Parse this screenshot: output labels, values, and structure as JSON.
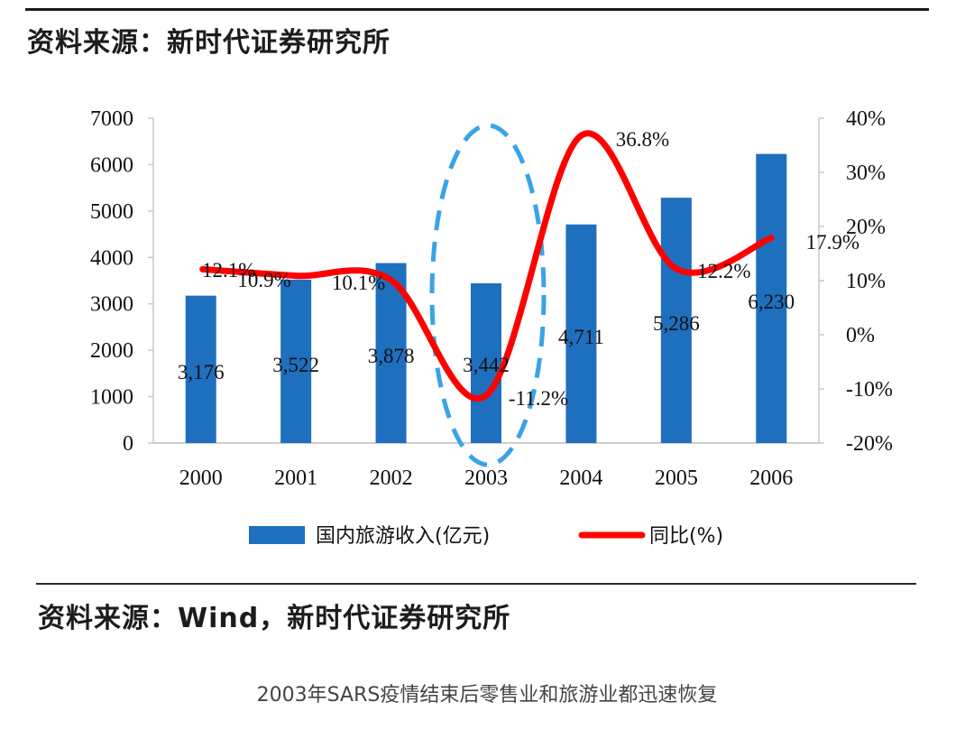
{
  "header": {
    "source_label": "资料来源：新时代证券研究所"
  },
  "footer": {
    "source_label": "资料来源：Wind，新时代证券研究所",
    "caption": "2003年SARS疫情结束后零售业和旅游业都迅速恢复"
  },
  "colors": {
    "bar": "#1f6fbf",
    "line": "#ff0000",
    "highlight": "#3aa3e8"
  },
  "chart_data": {
    "type": "bar",
    "categories": [
      "2000",
      "2001",
      "2002",
      "2003",
      "2004",
      "2005",
      "2006"
    ],
    "series": [
      {
        "name": "国内旅游收入(亿元)",
        "type": "bar",
        "axis": "left",
        "values": [
          3176,
          3522,
          3878,
          3442,
          4711,
          5286,
          6230
        ],
        "labels": [
          "3,176",
          "3,522",
          "3,878",
          "3,442",
          "4,711",
          "5,286",
          "6,230"
        ]
      },
      {
        "name": "同比(%)",
        "type": "line",
        "axis": "right",
        "values": [
          12.1,
          10.9,
          10.1,
          -11.2,
          36.8,
          12.2,
          17.9
        ],
        "labels": [
          "12.1%",
          "10.9%",
          "10.1%",
          "-11.2%",
          "36.8%",
          "12.2%",
          "17.9%"
        ]
      }
    ],
    "y_left": {
      "range": [
        0,
        7000
      ],
      "ticks": [
        "0",
        "1000",
        "2000",
        "3000",
        "4000",
        "5000",
        "6000",
        "7000"
      ]
    },
    "y_right": {
      "range": [
        -20,
        40
      ],
      "ticks": [
        "-20%",
        "-10%",
        "0%",
        "10%",
        "20%",
        "30%",
        "40%"
      ]
    },
    "highlight_category": "2003",
    "legend": [
      "国内旅游收入(亿元)",
      "同比(%)"
    ],
    "legend_position": "bottom"
  }
}
